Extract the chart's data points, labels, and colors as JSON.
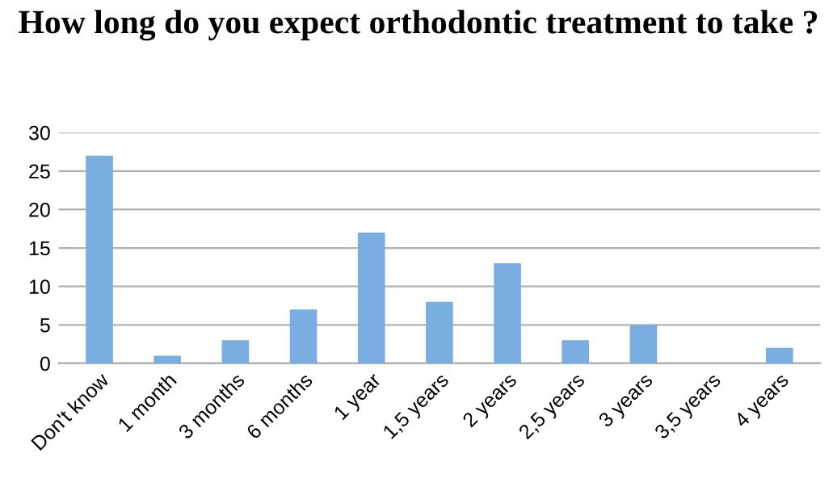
{
  "chart_data": {
    "type": "bar",
    "title": "How long do you expect orthodontic treatment to take ?",
    "categories": [
      "Don't know",
      "1 month",
      "3 months",
      "6 months",
      "1 year",
      "1,5 years",
      "2 years",
      "2,5 years",
      "3 years",
      "3,5 years",
      "4 years"
    ],
    "values": [
      27,
      1,
      3,
      7,
      17,
      8,
      13,
      3,
      5,
      0,
      2
    ],
    "color": "#7aaee0",
    "ylim": [
      0,
      30
    ],
    "yticks": [
      0,
      5,
      10,
      15,
      20,
      25,
      30
    ],
    "grid": "y",
    "legend": false
  }
}
